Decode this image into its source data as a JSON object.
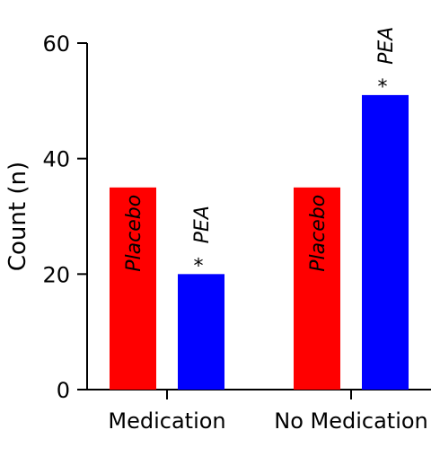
{
  "chart_data": {
    "type": "bar",
    "ylabel": "Count (n)",
    "ylim": [
      0,
      60
    ],
    "yticks": [
      "0",
      "20",
      "40",
      "60"
    ],
    "categories": [
      "Medication",
      "No Medication"
    ],
    "series": [
      {
        "name": "Placebo",
        "values": [
          35,
          35
        ],
        "color": "#ff0000",
        "significance": [
          "",
          ""
        ]
      },
      {
        "name": "PEA",
        "values": [
          20,
          51
        ],
        "color": "#0000ff",
        "significance": [
          "*",
          "*"
        ]
      }
    ],
    "grid": false,
    "legend": "none"
  }
}
